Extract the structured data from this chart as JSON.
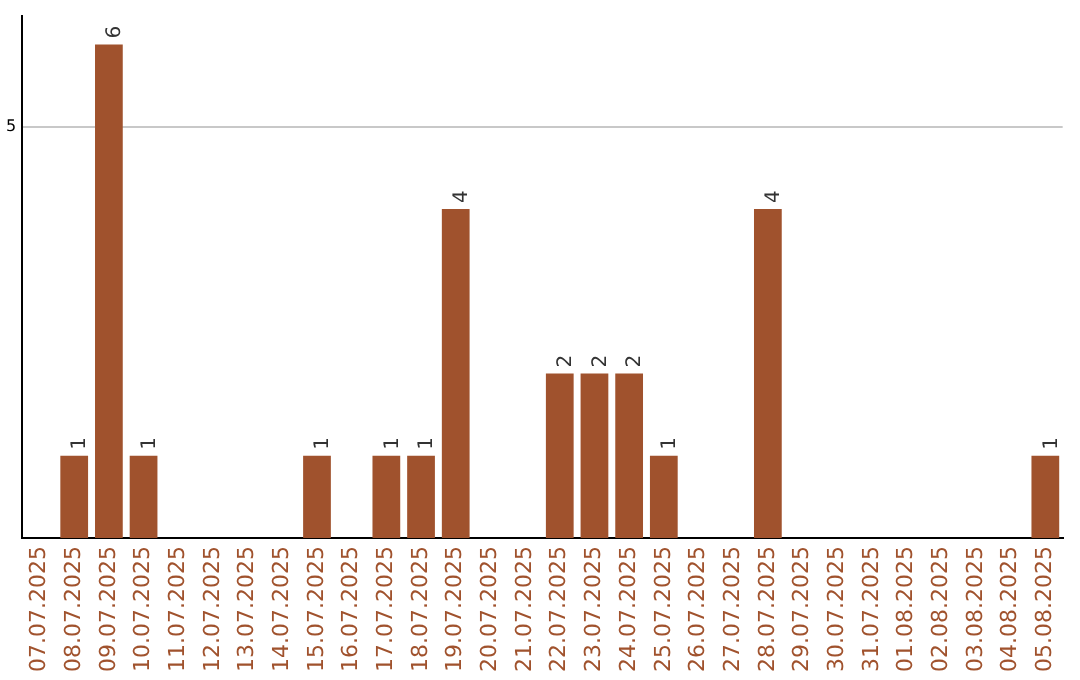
{
  "chart_data": {
    "type": "bar",
    "categories": [
      "07.07.2025",
      "08.07.2025",
      "09.07.2025",
      "10.07.2025",
      "11.07.2025",
      "12.07.2025",
      "13.07.2025",
      "14.07.2025",
      "15.07.2025",
      "16.07.2025",
      "17.07.2025",
      "18.07.2025",
      "19.07.2025",
      "20.07.2025",
      "21.07.2025",
      "22.07.2025",
      "23.07.2025",
      "24.07.2025",
      "25.07.2025",
      "26.07.2025",
      "27.07.2025",
      "28.07.2025",
      "29.07.2025",
      "30.07.2025",
      "31.07.2025",
      "01.08.2025",
      "02.08.2025",
      "03.08.2025",
      "04.08.2025",
      "05.08.2025"
    ],
    "values": [
      0,
      1,
      6,
      1,
      0,
      0,
      0,
      0,
      1,
      0,
      1,
      1,
      4,
      0,
      0,
      2,
      2,
      2,
      1,
      0,
      0,
      4,
      0,
      0,
      0,
      0,
      0,
      0,
      0,
      1
    ],
    "value_labels": [
      null,
      "1",
      "6",
      "1",
      null,
      null,
      null,
      null,
      "1",
      null,
      "1",
      "1",
      "4",
      null,
      null,
      "2",
      "2",
      "2",
      "1",
      null,
      null,
      "4",
      null,
      null,
      null,
      null,
      null,
      null,
      null,
      "1"
    ],
    "color": "#a0522d",
    "ylim": [
      0,
      6.35
    ],
    "yticks": [
      5
    ],
    "grid": "y",
    "legend": false
  }
}
